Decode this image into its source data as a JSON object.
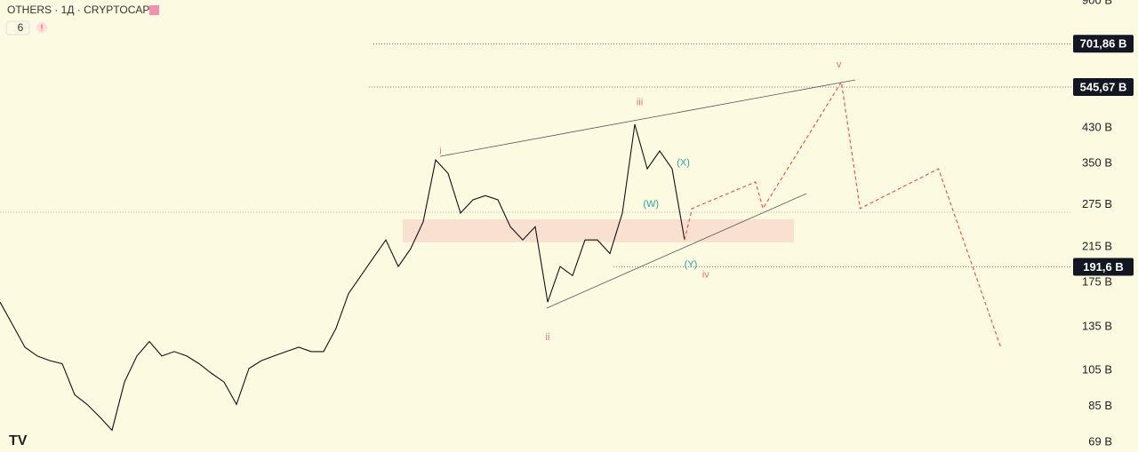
{
  "header": {
    "title": "OTHERS · 1Д · CRYPTOCAP",
    "count": "6"
  },
  "chart_data": {
    "type": "line",
    "log_scale": true,
    "ylim": [
      65.2,
      905.6
    ],
    "yticks": [
      {
        "value": 900,
        "label": "900 B"
      },
      {
        "value": 430,
        "label": "430 B"
      },
      {
        "value": 350,
        "label": "350 B"
      },
      {
        "value": 275,
        "label": "275 B"
      },
      {
        "value": 215,
        "label": "215 B"
      },
      {
        "value": 175,
        "label": "175 B"
      },
      {
        "value": 135,
        "label": "135 B"
      },
      {
        "value": 105,
        "label": "105 B"
      },
      {
        "value": 85,
        "label": "85 B"
      },
      {
        "value": 69,
        "label": "69 B"
      }
    ],
    "levels": [
      {
        "value": 701.86,
        "label": "701,86 B"
      },
      {
        "value": 545.67,
        "label": "545,67 B"
      },
      {
        "value": 191.6,
        "label": "191,6 B"
      }
    ],
    "series": [
      {
        "name": "OTHERS",
        "color": "#111111",
        "dashed": false,
        "x": [
          0,
          1,
          2,
          3,
          4,
          5,
          6,
          7,
          8,
          9,
          10,
          11,
          12,
          13,
          14,
          15,
          16,
          17,
          18,
          19,
          20,
          21,
          22,
          23,
          24,
          25,
          26,
          27,
          28,
          29,
          30,
          31,
          32,
          33,
          34,
          35,
          36,
          37,
          38,
          39,
          40,
          41,
          42,
          43,
          44,
          45,
          46,
          47,
          48,
          49,
          50,
          51,
          52,
          53,
          54,
          55
        ],
        "values": [
          156,
          137,
          120,
          114,
          111,
          109,
          91,
          86,
          80,
          74,
          98,
          114,
          124,
          114,
          117,
          114,
          109,
          103,
          98,
          86,
          106,
          111,
          114,
          117,
          120,
          117,
          117,
          134,
          164,
          182,
          202,
          224,
          192,
          213,
          249,
          357,
          330,
          262,
          283,
          290,
          283,
          242,
          224,
          242,
          156,
          192,
          182,
          224,
          224,
          207,
          262,
          439,
          339,
          376,
          339,
          224
        ]
      },
      {
        "name": "projection",
        "color": "#ef5350",
        "dashed": true,
        "x": [
          55,
          55.6,
          60.7,
          61.3,
          67.6,
          69.1,
          75.4,
          80.4
        ],
        "values": [
          224,
          269,
          314,
          269,
          562,
          269,
          339,
          120
        ]
      }
    ],
    "annotations": [
      {
        "text": "i",
        "x": 35.4,
        "y": 375,
        "color": "#e57373"
      },
      {
        "text": "ii",
        "x": 44,
        "y": 127,
        "color": "#e57373"
      },
      {
        "text": "iii",
        "x": 51.4,
        "y": 498,
        "color": "#e57373"
      },
      {
        "text": "iv",
        "x": 56.7,
        "y": 183,
        "color": "#e57373"
      },
      {
        "text": "v",
        "x": 67.4,
        "y": 620,
        "color": "#e57373"
      },
      {
        "text": "(W)",
        "x": 52.3,
        "y": 276,
        "color": "#26a69a"
      },
      {
        "text": "(X)",
        "x": 54.9,
        "y": 351,
        "color": "#26a69a"
      },
      {
        "text": "(Y)",
        "x": 55.5,
        "y": 194,
        "color": "#26a69a"
      }
    ]
  }
}
